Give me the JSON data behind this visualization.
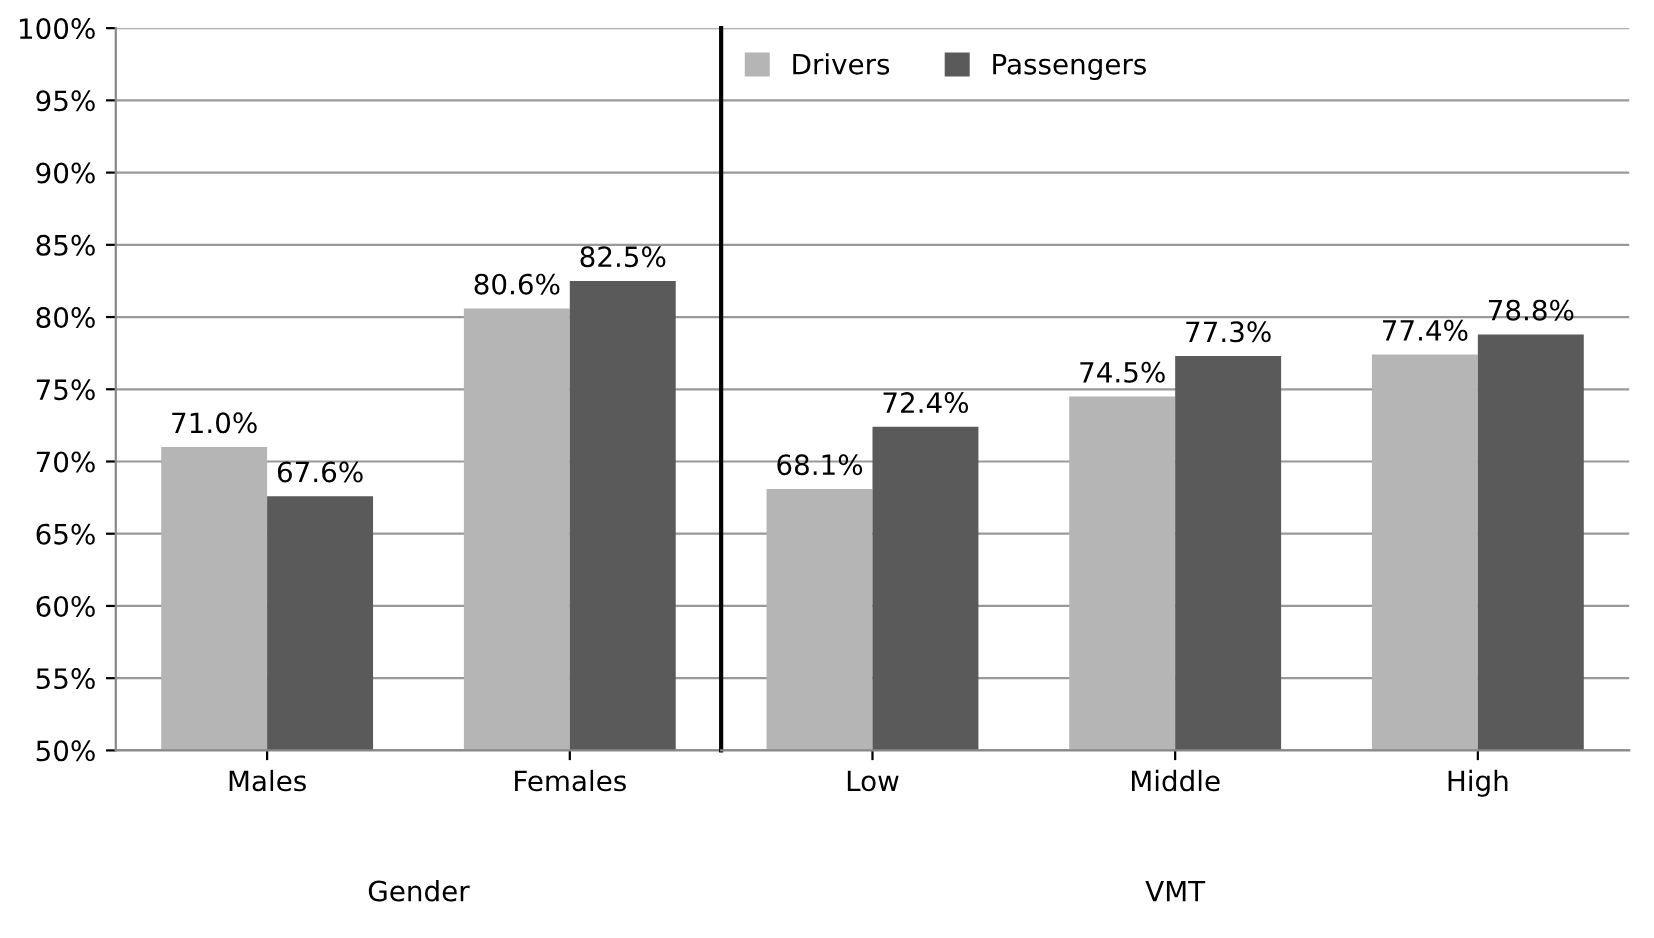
{
  "chart_data": [
    {
      "type": "bar",
      "xlabel": "Gender",
      "categories": [
        "Males",
        "Females"
      ],
      "series": [
        {
          "color": "#b5b5b5",
          "values": [
            71.0,
            80.6
          ],
          "value_labels": [
            "71.0%",
            "80.6%"
          ]
        },
        {
          "color": "#5a5a5a",
          "values": [
            67.6,
            82.5
          ],
          "value_labels": [
            "67.6%",
            "82.5%"
          ]
        }
      ],
      "ylim": [
        50,
        100
      ],
      "yticks": [
        {
          "value": 50,
          "label": "50%"
        },
        {
          "value": 55,
          "label": "55%"
        },
        {
          "value": 60,
          "label": "60%"
        },
        {
          "value": 65,
          "label": "65%"
        },
        {
          "value": 70,
          "label": "70%"
        },
        {
          "value": 75,
          "label": "75%"
        },
        {
          "value": 80,
          "label": "80%"
        },
        {
          "value": 85,
          "label": "85%"
        },
        {
          "value": 90,
          "label": "90%"
        },
        {
          "value": 95,
          "label": "95%"
        },
        {
          "value": 100,
          "label": "100%"
        }
      ],
      "grid": "y"
    },
    {
      "type": "bar",
      "xlabel": "VMT",
      "categories": [
        "Low",
        "Middle",
        "High"
      ],
      "series": [
        {
          "name": "Drivers",
          "color": "#b5b5b5",
          "values": [
            68.1,
            74.5,
            77.4
          ],
          "value_labels": [
            "68.1%",
            "74.5%",
            "77.4%"
          ]
        },
        {
          "name": "Passengers",
          "color": "#5a5a5a",
          "values": [
            72.4,
            77.3,
            78.8
          ],
          "value_labels": [
            "72.4%",
            "77.3%",
            "78.8%"
          ]
        }
      ],
      "ylim": [
        50,
        100
      ],
      "yticks": [
        50,
        55,
        60,
        65,
        70,
        75,
        80,
        85,
        90,
        95,
        100
      ],
      "grid": "y",
      "legend": "top left",
      "tick_labels": "x"
    }
  ]
}
